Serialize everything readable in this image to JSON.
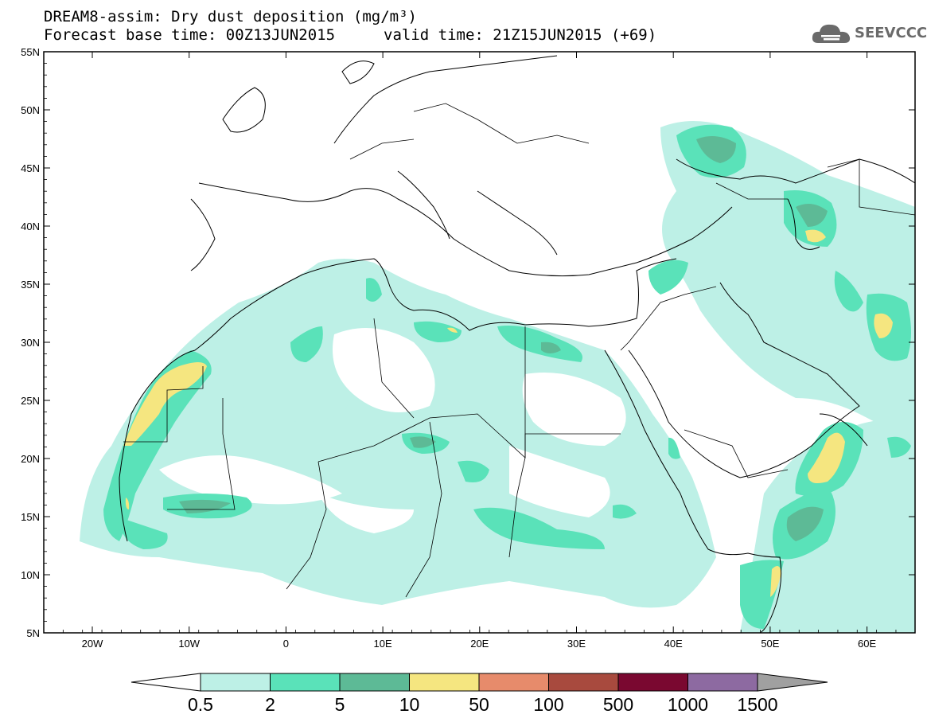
{
  "title": {
    "line1": "DREAM8-assim: Dry dust deposition (mg/m³)",
    "line2_left": "Forecast base time: 00Z13JUN2015",
    "line2_right": "valid time: 21Z15JUN2015 (+69)"
  },
  "logo": {
    "text": "SEEVCCC",
    "icon": "cloud-logo-icon"
  },
  "axes": {
    "lat_ticks": [
      "55N",
      "50N",
      "45N",
      "40N",
      "35N",
      "30N",
      "25N",
      "20N",
      "15N",
      "10N",
      "5N"
    ],
    "lon_ticks": [
      "20W",
      "10W",
      "0",
      "10E",
      "20E",
      "30E",
      "40E",
      "50E",
      "60E"
    ]
  },
  "colorbar": {
    "labels": [
      "0.5",
      "2",
      "5",
      "10",
      "50",
      "100",
      "500",
      "1000",
      "1500"
    ],
    "colors": [
      "#bdf0e6",
      "#5ae2b9",
      "#5dba96",
      "#f5e680",
      "#e78b6b",
      "#a84a3e",
      "#7a0830",
      "#8d6aa1",
      "#a0a0a0"
    ]
  },
  "colors": {
    "level1": "#bdf0e6",
    "level2": "#5ae2b9",
    "level3": "#5dba96",
    "level4": "#f5e680",
    "coast": "#000000",
    "frame": "#000000"
  }
}
